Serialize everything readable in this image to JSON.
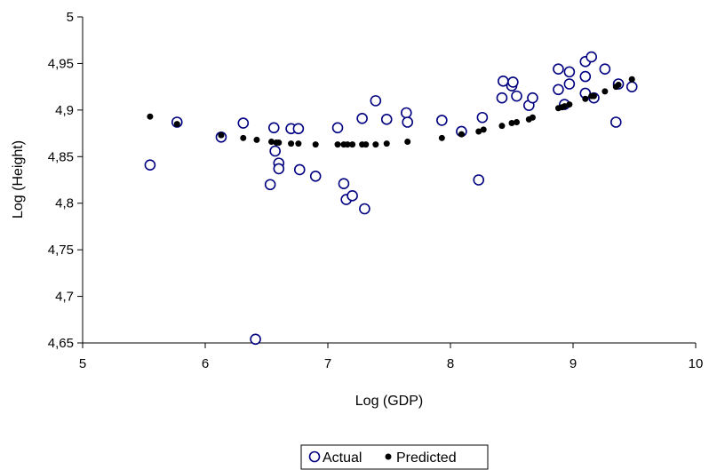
{
  "chart_data": {
    "type": "scatter",
    "xlabel": "Log (GDP)",
    "ylabel": "Log (Height)",
    "xlim": [
      5,
      10
    ],
    "ylim": [
      4.65,
      5.0
    ],
    "x_ticks": [
      "5",
      "6",
      "7",
      "8",
      "9",
      "10"
    ],
    "y_ticks": [
      "4,65",
      "4,7",
      "4,75",
      "4,8",
      "4,85",
      "4,9",
      "4,95",
      "5"
    ],
    "x_tick_values": [
      5,
      6,
      7,
      8,
      9,
      10
    ],
    "y_tick_values": [
      4.65,
      4.7,
      4.75,
      4.8,
      4.85,
      4.9,
      4.95,
      5.0
    ],
    "grid": false,
    "legend_position": "bottom",
    "series": [
      {
        "name": "Actual",
        "marker": "open-circle",
        "color": "#000080",
        "points": [
          [
            5.55,
            4.841
          ],
          [
            5.77,
            4.887
          ],
          [
            6.13,
            4.871
          ],
          [
            6.31,
            4.886
          ],
          [
            6.41,
            4.654
          ],
          [
            6.53,
            4.82
          ],
          [
            6.56,
            4.881
          ],
          [
            6.57,
            4.856
          ],
          [
            6.6,
            4.843
          ],
          [
            6.6,
            4.837
          ],
          [
            6.7,
            4.88
          ],
          [
            6.76,
            4.88
          ],
          [
            6.77,
            4.836
          ],
          [
            6.9,
            4.829
          ],
          [
            7.08,
            4.881
          ],
          [
            7.13,
            4.821
          ],
          [
            7.15,
            4.804
          ],
          [
            7.2,
            4.808
          ],
          [
            7.28,
            4.891
          ],
          [
            7.3,
            4.794
          ],
          [
            7.39,
            4.91
          ],
          [
            7.48,
            4.89
          ],
          [
            7.64,
            4.897
          ],
          [
            7.65,
            4.887
          ],
          [
            7.93,
            4.889
          ],
          [
            8.09,
            4.877
          ],
          [
            8.23,
            4.825
          ],
          [
            8.26,
            4.892
          ],
          [
            8.42,
            4.913
          ],
          [
            8.43,
            4.931
          ],
          [
            8.5,
            4.926
          ],
          [
            8.51,
            4.93
          ],
          [
            8.54,
            4.915
          ],
          [
            8.64,
            4.905
          ],
          [
            8.67,
            4.913
          ],
          [
            8.88,
            4.944
          ],
          [
            8.88,
            4.922
          ],
          [
            8.93,
            4.906
          ],
          [
            8.97,
            4.941
          ],
          [
            8.97,
            4.928
          ],
          [
            9.1,
            4.952
          ],
          [
            9.1,
            4.936
          ],
          [
            9.1,
            4.918
          ],
          [
            9.15,
            4.957
          ],
          [
            9.17,
            4.913
          ],
          [
            9.26,
            4.944
          ],
          [
            9.35,
            4.887
          ],
          [
            9.37,
            4.928
          ],
          [
            9.48,
            4.925
          ]
        ]
      },
      {
        "name": "Predicted",
        "marker": "filled-circle",
        "color": "#000000",
        "points": [
          [
            5.55,
            4.893
          ],
          [
            5.77,
            4.885
          ],
          [
            6.13,
            4.873
          ],
          [
            6.31,
            4.87
          ],
          [
            6.42,
            4.868
          ],
          [
            6.54,
            4.866
          ],
          [
            6.58,
            4.865
          ],
          [
            6.6,
            4.865
          ],
          [
            6.7,
            4.864
          ],
          [
            6.76,
            4.864
          ],
          [
            6.9,
            4.863
          ],
          [
            7.08,
            4.863
          ],
          [
            7.13,
            4.863
          ],
          [
            7.16,
            4.863
          ],
          [
            7.2,
            4.863
          ],
          [
            7.28,
            4.863
          ],
          [
            7.31,
            4.863
          ],
          [
            7.39,
            4.863
          ],
          [
            7.48,
            4.864
          ],
          [
            7.65,
            4.866
          ],
          [
            7.93,
            4.87
          ],
          [
            8.09,
            4.874
          ],
          [
            8.23,
            4.877
          ],
          [
            8.27,
            4.879
          ],
          [
            8.42,
            4.883
          ],
          [
            8.5,
            4.886
          ],
          [
            8.54,
            4.887
          ],
          [
            8.64,
            4.89
          ],
          [
            8.67,
            4.892
          ],
          [
            8.88,
            4.902
          ],
          [
            8.91,
            4.903
          ],
          [
            8.93,
            4.904
          ],
          [
            8.97,
            4.906
          ],
          [
            9.1,
            4.912
          ],
          [
            9.15,
            4.915
          ],
          [
            9.17,
            4.915
          ],
          [
            9.26,
            4.92
          ],
          [
            9.35,
            4.925
          ],
          [
            9.37,
            4.927
          ],
          [
            9.48,
            4.933
          ]
        ]
      }
    ]
  }
}
